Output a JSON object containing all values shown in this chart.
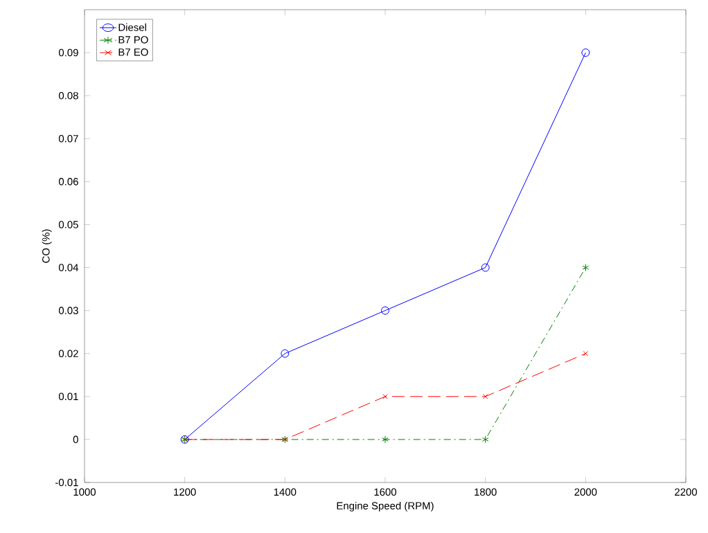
{
  "chart_data": {
    "type": "line",
    "xlabel": "Engine Speed (RPM)",
    "ylabel": "CO (%)",
    "x": [
      1200,
      1400,
      1600,
      1800,
      2000
    ],
    "series": [
      {
        "name": "Diesel",
        "color": "#0000ff",
        "values": [
          0,
          0.02,
          0.03,
          0.04,
          0.09
        ],
        "marker": "circle",
        "line_style": "solid"
      },
      {
        "name": "B7 PO",
        "color": "#008000",
        "values": [
          0,
          0,
          0,
          0,
          0.04
        ],
        "marker": "cross",
        "line_style": "dashdot"
      },
      {
        "name": "B7 EO",
        "color": "#ff0000",
        "values": [
          0,
          0,
          0.01,
          0.01,
          0.02
        ],
        "marker": "cross",
        "line_style": "dashed"
      }
    ],
    "xlim": [
      1000,
      2200
    ],
    "xticks": [
      1000,
      1200,
      1400,
      1600,
      1800,
      2000,
      2200
    ],
    "ylim": [
      -0.01,
      0.1
    ],
    "yticks": [
      -0.01,
      0,
      0.01,
      0.02,
      0.03,
      0.04,
      0.05,
      0.06,
      0.07,
      0.08,
      0.09
    ],
    "grid": false,
    "legend": "top left"
  }
}
